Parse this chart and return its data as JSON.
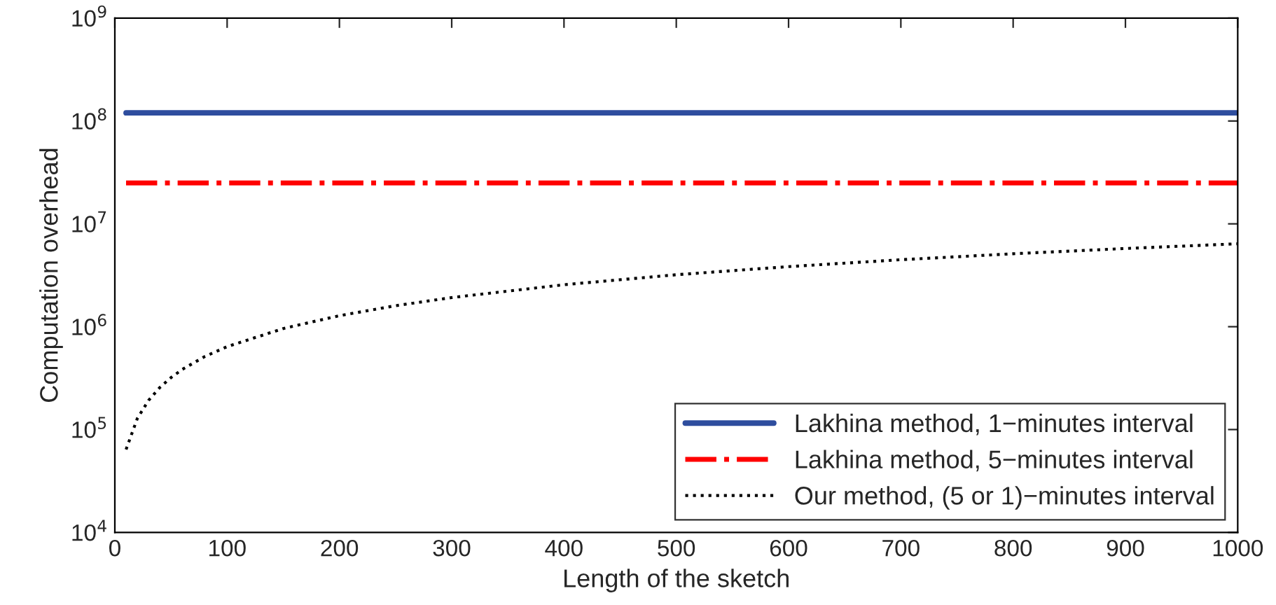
{
  "chart_data": {
    "type": "line",
    "xlabel": "Length of the sketch",
    "ylabel": "Computation overhead",
    "log": "y",
    "xlim": [
      0,
      1000
    ],
    "xticks": [
      0,
      100,
      200,
      300,
      400,
      500,
      600,
      700,
      800,
      900,
      1000
    ],
    "ylim": [
      10000,
      1000000000
    ],
    "yticks": [
      {
        "value": 10000,
        "label": "10$^{4}$"
      },
      {
        "value": 100000,
        "label": "10$^{5}$"
      },
      {
        "value": 1000000,
        "label": "10$^{6}$"
      },
      {
        "value": 10000000,
        "label": "10$^{7}$"
      },
      {
        "value": 100000000,
        "label": "10$^{8}$"
      },
      {
        "value": 1000000000,
        "label": "10$^{9}$"
      }
    ],
    "grid": false,
    "legend": "bottom right",
    "series": [
      {
        "name": "Lakhina method, 1−minutes interval",
        "color": "#2e4d9e",
        "line_style": "solid",
        "x": [
          10,
          1000
        ],
        "values": [
          120000000,
          120000000
        ]
      },
      {
        "name": "Lakhina method, 5−minutes interval",
        "color": "#ff0000",
        "line_style": "dashdot",
        "x": [
          10,
          1000
        ],
        "values": [
          25000000,
          25000000
        ]
      },
      {
        "name": "Our method, (5 or 1)−minutes interval",
        "color": "#000000",
        "line_style": "dotted",
        "x": [
          10,
          20,
          30,
          40,
          50,
          60,
          80,
          100,
          150,
          200,
          250,
          300,
          400,
          500,
          600,
          700,
          800,
          900,
          1000
        ],
        "values": [
          64000,
          128000,
          192000,
          256000,
          320000,
          384000,
          512000,
          640000,
          960000,
          1280000,
          1600000,
          1920000,
          2560000,
          3200000,
          3840000,
          4480000,
          5120000,
          5760000,
          6400000
        ]
      }
    ]
  }
}
